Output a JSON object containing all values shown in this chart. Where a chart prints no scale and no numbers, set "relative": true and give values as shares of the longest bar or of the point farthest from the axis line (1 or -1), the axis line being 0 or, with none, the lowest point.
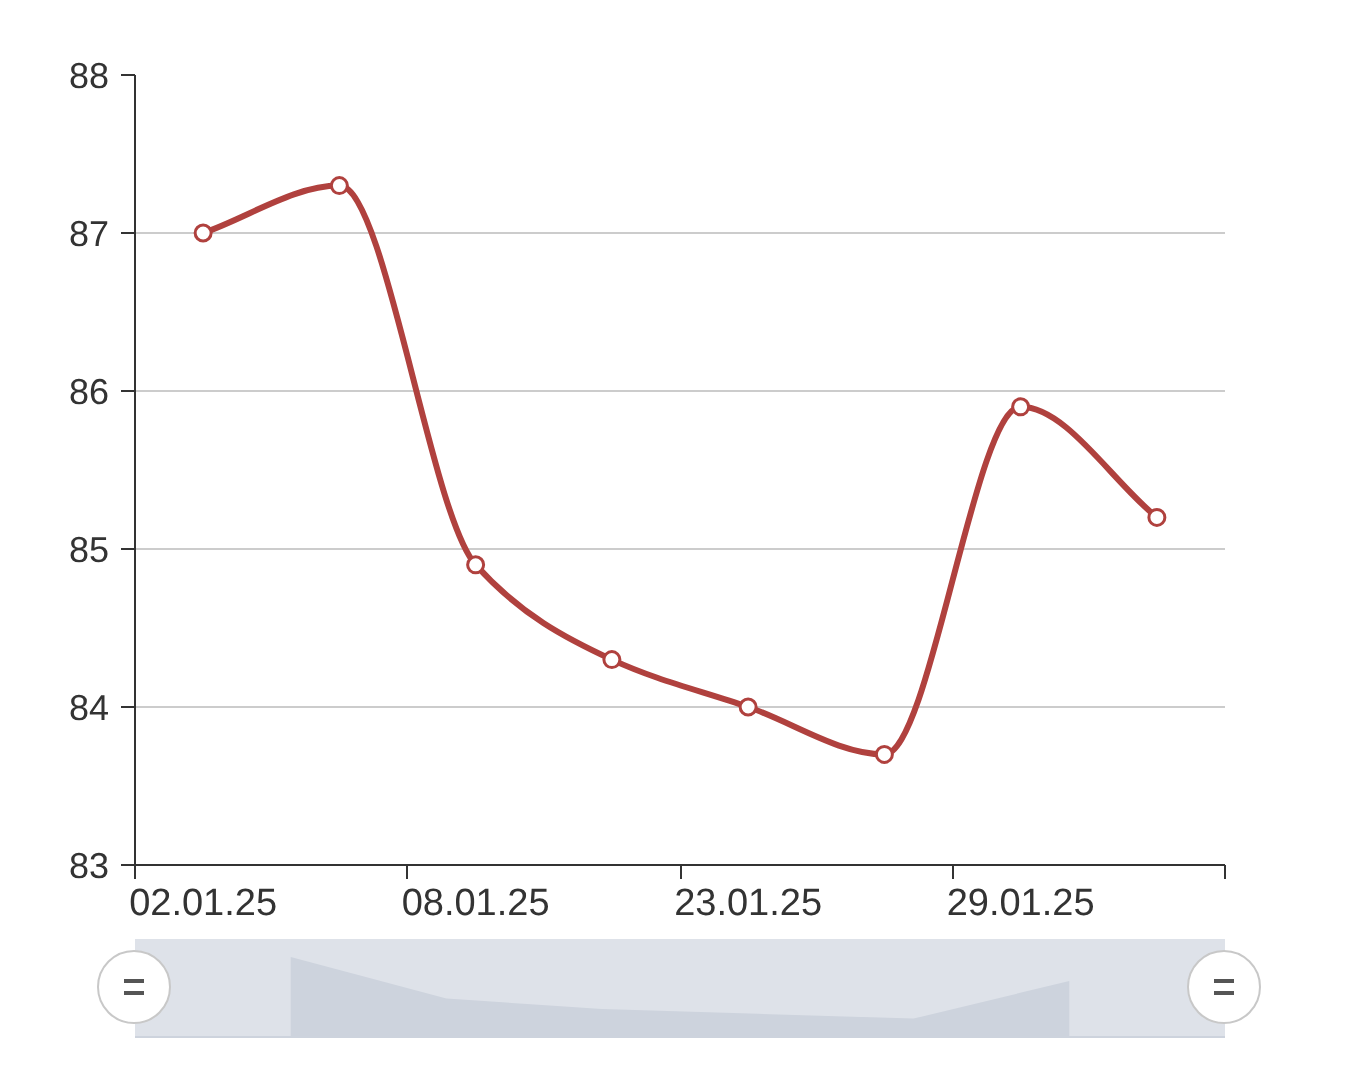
{
  "chart_data": [
    {
      "type": "line",
      "categories": [
        "02.01.25",
        null,
        "08.01.25",
        null,
        "23.01.25",
        null,
        "29.01.25",
        null
      ],
      "series": [
        {
          "color": "#b0413e",
          "values": [
            87.0,
            87.3,
            84.9,
            84.3,
            84.0,
            83.7,
            85.9,
            85.2
          ]
        }
      ],
      "ylim": [
        83,
        88
      ],
      "yticks": [
        83,
        84,
        85,
        86,
        87,
        88
      ],
      "grid": "y",
      "marker": "circle",
      "line_style": "solid"
    },
    {
      "type": "area",
      "categories": [
        null,
        null,
        null,
        null,
        null,
        null,
        null,
        null
      ],
      "relative": true,
      "series": [
        {
          "color": "#cdd3dd",
          "values": [
            null,
            1,
            0.48,
            0.35,
            0.29,
            0.23,
            0.7,
            null
          ]
        }
      ]
    }
  ]
}
